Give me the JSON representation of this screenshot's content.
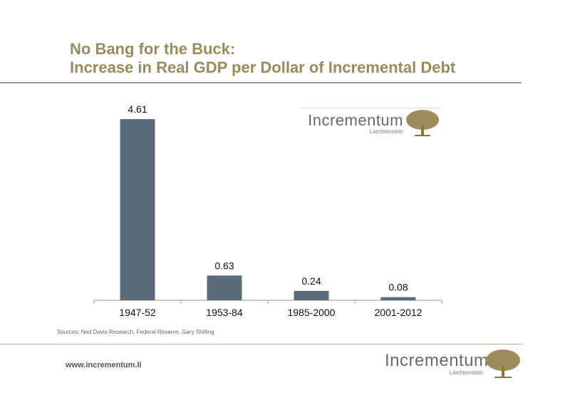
{
  "header": {
    "title_line1": "No Bang for the Buck:",
    "title_line2": "Increase in Real GDP per Dollar of Incremental Debt"
  },
  "chart_data": {
    "type": "bar",
    "categories": [
      "1947-52",
      "1953-84",
      "1985-2000",
      "2001-2012"
    ],
    "values": [
      4.61,
      0.63,
      0.24,
      0.08
    ],
    "data_labels": [
      "4.61",
      "0.63",
      "0.24",
      "0.08"
    ],
    "ylim": [
      0,
      4.61
    ],
    "grid": false,
    "bar_color": "#5b6b79"
  },
  "footer": {
    "sources": "Sources: Ned Davis Research, Federal Reserve, Gary Shilling",
    "url": "www.incrementum.li"
  },
  "logo": {
    "name": "Incrementum",
    "sub": "Liechtenstein",
    "color": "#a08c5a"
  }
}
